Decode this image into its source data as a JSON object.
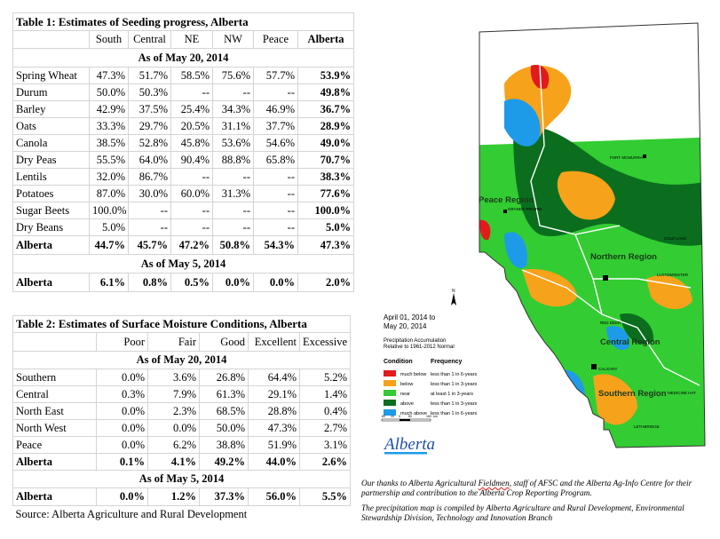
{
  "table1": {
    "title": "Table 1: Estimates of Seeding progress, Alberta",
    "columns": [
      "South",
      "Central",
      "NE",
      "NW",
      "Peace",
      "Alberta"
    ],
    "section1": "As of May 20, 2014",
    "rows": [
      {
        "name": "Spring Wheat",
        "values": [
          "47.3%",
          "51.7%",
          "58.5%",
          "75.6%",
          "57.7%"
        ],
        "total": "53.9%"
      },
      {
        "name": "Durum",
        "values": [
          "50.0%",
          "50.3%",
          "--",
          "--",
          "--"
        ],
        "total": "49.8%"
      },
      {
        "name": "Barley",
        "values": [
          "42.9%",
          "37.5%",
          "25.4%",
          "34.3%",
          "46.9%"
        ],
        "total": "36.7%"
      },
      {
        "name": "Oats",
        "values": [
          "33.3%",
          "29.7%",
          "20.5%",
          "31.1%",
          "37.7%"
        ],
        "total": "28.9%"
      },
      {
        "name": "Canola",
        "values": [
          "38.5%",
          "52.8%",
          "45.8%",
          "53.6%",
          "54.6%"
        ],
        "total": "49.0%"
      },
      {
        "name": "Dry Peas",
        "values": [
          "55.5%",
          "64.0%",
          "90.4%",
          "88.8%",
          "65.8%"
        ],
        "total": "70.7%"
      },
      {
        "name": "Lentils",
        "values": [
          "32.0%",
          "86.7%",
          "--",
          "--",
          "--"
        ],
        "total": "38.3%"
      },
      {
        "name": "Potatoes",
        "values": [
          "87.0%",
          "30.0%",
          "60.0%",
          "31.3%",
          "--"
        ],
        "total": "77.6%"
      },
      {
        "name": "Sugar Beets",
        "values": [
          "100.0%",
          "--",
          "--",
          "--",
          "--"
        ],
        "total": "100.0%"
      },
      {
        "name": "Dry Beans",
        "values": [
          "5.0%",
          "--",
          "--",
          "--",
          "--"
        ],
        "total": "5.0%"
      }
    ],
    "alberta_row": {
      "name": "Alberta",
      "values": [
        "44.7%",
        "45.7%",
        "47.2%",
        "50.8%",
        "54.3%"
      ],
      "total": "47.3%"
    },
    "section2": "As of May 5, 2014",
    "alberta_row2": {
      "name": "Alberta",
      "values": [
        "6.1%",
        "0.8%",
        "0.5%",
        "0.0%",
        "0.0%"
      ],
      "total": "2.0%"
    }
  },
  "table2": {
    "title": "Table 2: Estimates of Surface Moisture Conditions, Alberta",
    "columns": [
      "Poor",
      "Fair",
      "Good",
      "Excellent",
      "Excessive"
    ],
    "section1": "As of May 20, 2014",
    "rows": [
      {
        "name": "Southern",
        "values": [
          "0.0%",
          "3.6%",
          "26.8%",
          "64.4%",
          "5.2%"
        ]
      },
      {
        "name": "Central",
        "values": [
          "0.3%",
          "7.9%",
          "61.3%",
          "29.1%",
          "1.4%"
        ]
      },
      {
        "name": "North East",
        "values": [
          "0.0%",
          "2.3%",
          "68.5%",
          "28.8%",
          "0.4%"
        ]
      },
      {
        "name": "North West",
        "values": [
          "0.0%",
          "0.0%",
          "50.0%",
          "47.3%",
          "2.7%"
        ]
      },
      {
        "name": "Peace",
        "values": [
          "0.0%",
          "6.2%",
          "38.8%",
          "51.9%",
          "3.1%"
        ]
      }
    ],
    "alberta_row": {
      "name": "Alberta",
      "values": [
        "0.1%",
        "4.1%",
        "49.2%",
        "44.0%",
        "2.6%"
      ]
    },
    "section2": "As of May 5, 2014",
    "alberta_row2": {
      "name": "Alberta",
      "values": [
        "0.0%",
        "1.2%",
        "37.3%",
        "56.0%",
        "5.5%"
      ]
    },
    "source": "Source:  Alberta Agriculture and Rural Development"
  },
  "map": {
    "title_line1": "April 01, 2014 to",
    "title_line2": "May 20, 2014",
    "subtitle_line1": "Precipitation Accumulation",
    "subtitle_line2": "Relative to 1961-2012 Normal",
    "legend_header_condition": "Condition",
    "legend_header_frequency": "Frequency",
    "legend": [
      {
        "condition": "much below",
        "frequency": "less than 1 in 6-years",
        "color": "#e31a1c"
      },
      {
        "condition": "below",
        "frequency": "less than 1 in 3-years",
        "color": "#f7a21b"
      },
      {
        "condition": "near",
        "frequency": "at least 1 in 3-years",
        "color": "#33cc33"
      },
      {
        "condition": "above",
        "frequency": "less than 1 in 3-years",
        "color": "#0a6e1e"
      },
      {
        "condition": "much above",
        "frequency": "less than 1 in 6-years",
        "color": "#1e9be8"
      }
    ],
    "regions": {
      "peace": "Peace Region",
      "northern": "Northern Region",
      "central": "Central Region",
      "southern": "Southern Region"
    },
    "cities": {
      "fort_mcmurray": "FORT MCMURRAY",
      "grande_prairie": "GRANDE PRAIRIE",
      "cold_lake": "COLD LAKE",
      "lloydminster": "LLOYDMINSTER",
      "red_deer": "RED DEER",
      "calgary": "CALGARY",
      "lethbridge": "LETHBRIDGE",
      "medicine_hat": "MEDICINE HAT"
    },
    "north_label": "N",
    "scale": [
      "80",
      "40",
      "0",
      "80",
      "160"
    ],
    "scale_unit": "km",
    "logo": "Alberta"
  },
  "notes": {
    "line1_part1": "Our thanks to Alberta Agricultural ",
    "line1_fieldmen": "Fieldmen",
    "line1_part2": ",  staff of AFSC and the Alberta Ag-Info Centre for their",
    "line2": "partnership and contribution to the Alberta Crop Reporting Program.",
    "line3": "The precipitation map is compiled by Alberta Agriculture and Rural Development,  Environmental",
    "line4": "Stewardship Division, Technology and Innovation Branch"
  }
}
